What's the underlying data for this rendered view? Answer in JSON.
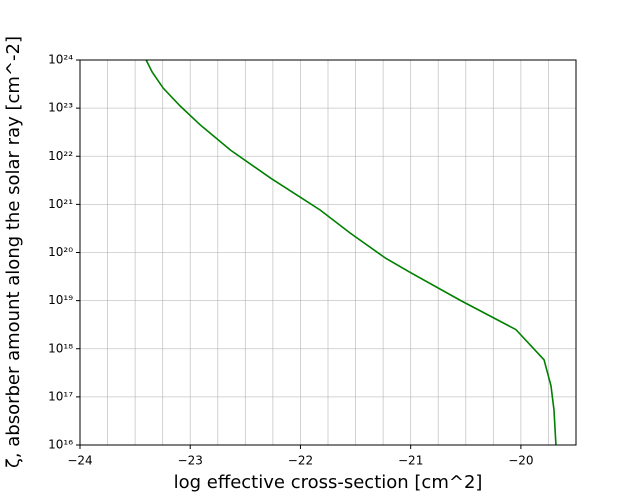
{
  "chart_data": {
    "type": "line",
    "x_label": "log effective cross-section [cm^2]",
    "y_label": "ζ, absorber amount along the solar ray [cm^-2]",
    "x": [
      -23.4,
      -23.345,
      -23.245,
      -23.09,
      -22.91,
      -22.636,
      -22.27,
      -22.0,
      -21.82,
      -21.545,
      -21.227,
      -21.0,
      -20.545,
      -20.045,
      -19.79,
      -19.727,
      -19.7,
      -19.682
    ],
    "series": [
      {
        "name": "ζ",
        "color": "#008000",
        "values": [
          1e+24,
          5.6e+23,
          2.6e+23,
          1.1e+23,
          4.5e+22,
          1.35e+22,
          3.5e+21,
          1.4e+21,
          7.6e+20,
          2.5e+20,
          7.6e+19,
          3.8e+19,
          1e+19,
          2.5e+18,
          5.9e+17,
          1.7e+17,
          5.4e+16,
          1e+16
        ]
      }
    ],
    "xlim": [
      -24,
      -19.5
    ],
    "xticks": [
      {
        "value": -24,
        "label": "−24"
      },
      {
        "value": -23,
        "label": "−23"
      },
      {
        "value": -22,
        "label": "−22"
      },
      {
        "value": -21,
        "label": "−21"
      },
      {
        "value": -20,
        "label": "−20"
      }
    ],
    "xgrid": [
      -23.75,
      -23.5,
      -23.25,
      -23,
      -22.75,
      -22.5,
      -22.25,
      -22,
      -21.75,
      -21.5,
      -21.25,
      -21,
      -20.75,
      -20.5,
      -20.25,
      -20,
      -19.75
    ],
    "ylim": [
      1e+16,
      1e+24
    ],
    "yscale": "log",
    "yticks": [
      {
        "value": 1e+16,
        "label": "10¹⁶"
      },
      {
        "value": 1e+17,
        "label": "10¹⁷"
      },
      {
        "value": 1e+18,
        "label": "10¹⁸"
      },
      {
        "value": 1e+19,
        "label": "10¹⁹"
      },
      {
        "value": 1e+20,
        "label": "10²⁰"
      },
      {
        "value": 1e+21,
        "label": "10²¹"
      },
      {
        "value": 1e+22,
        "label": "10²²"
      },
      {
        "value": 1e+23,
        "label": "10²³"
      },
      {
        "value": 1e+24,
        "label": "10²⁴"
      }
    ],
    "grid": true
  }
}
